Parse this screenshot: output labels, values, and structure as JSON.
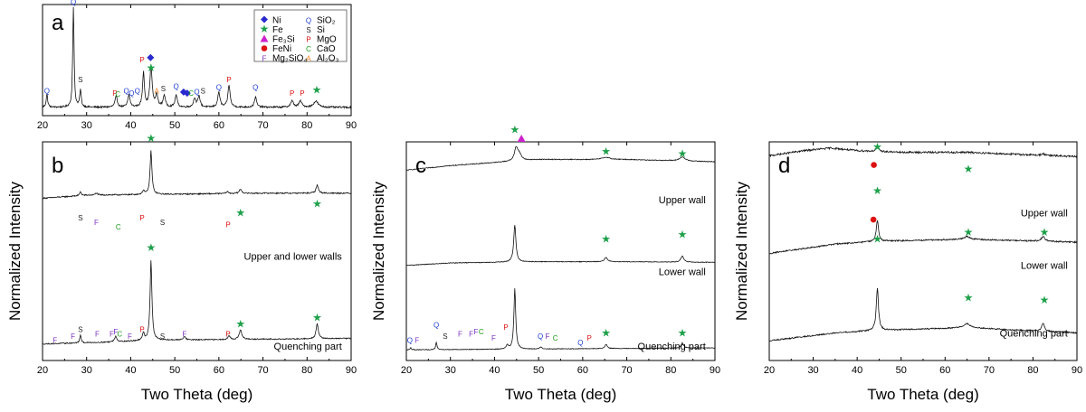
{
  "figure": {
    "x_axis_title": "Two Theta (deg)",
    "y_axis_title": "Normalized Intensity"
  },
  "colors": {
    "Q": "#1f3fcf",
    "S": "#222222",
    "P": "#dd1111",
    "C": "#1a9a1a",
    "F": "#7a2fbf",
    "A": "#ef7f1a",
    "Ni": "#2a2acf",
    "Fe": "#1fa04a",
    "Fe3Si": "#cc22cc",
    "FeNi": "#dd1111"
  },
  "legend": [
    {
      "symbol": "◆",
      "key": "Ni",
      "label": "Ni"
    },
    {
      "symbol": "★",
      "key": "Fe",
      "label": "Fe"
    },
    {
      "symbol": "▲",
      "key": "Fe3Si",
      "label": "Fe₃Si"
    },
    {
      "symbol": "●",
      "key": "FeNi",
      "label": "FeNi"
    },
    {
      "symbol": "F",
      "key": "F",
      "label": "Mg₂SiO₄"
    },
    {
      "symbol": "Q",
      "key": "Q",
      "label": "SiO₂"
    },
    {
      "symbol": "S",
      "key": "S",
      "label": "Si"
    },
    {
      "symbol": "P",
      "key": "P",
      "label": "MgO"
    },
    {
      "symbol": "C",
      "key": "C",
      "label": "CaO"
    },
    {
      "symbol": "A",
      "key": "A",
      "label": "Al₂O₃"
    }
  ],
  "chart_data": [
    {
      "panel": "a",
      "type": "line",
      "xlim": [
        20,
        90
      ],
      "xticks": [
        20,
        30,
        40,
        50,
        60,
        70,
        80,
        90
      ],
      "traces": [
        {
          "label": "",
          "background": [
            [
              20,
              0.05
            ],
            [
              90,
              0.05
            ]
          ],
          "peaks": [
            [
              21,
              0.13,
              0.2
            ],
            [
              27,
              1.0,
              0.18
            ],
            [
              28.6,
              0.17,
              0.2
            ],
            [
              36.7,
              0.11,
              0.3
            ],
            [
              39.6,
              0.12,
              0.3
            ],
            [
              42.9,
              0.35,
              0.25
            ],
            [
              44.6,
              0.41,
              0.3
            ],
            [
              45.9,
              0.12,
              0.3
            ],
            [
              47.6,
              0.12,
              0.3
            ],
            [
              50.3,
              0.12,
              0.3
            ],
            [
              54.5,
              0.09,
              0.3
            ],
            [
              55.5,
              0.11,
              0.3
            ],
            [
              60,
              0.15,
              0.3
            ],
            [
              62.3,
              0.22,
              0.3
            ],
            [
              68.3,
              0.1,
              0.3
            ],
            [
              76.6,
              0.06,
              0.4
            ],
            [
              78.5,
              0.06,
              0.4
            ],
            [
              82,
              0.06,
              0.6
            ]
          ],
          "noise": 0.008,
          "markers": [
            [
              "Q",
              21,
              0.2
            ],
            [
              "Q",
              27,
              1.0
            ],
            [
              "S",
              28.6,
              0.3
            ],
            [
              "P",
              36.4,
              0.18
            ],
            [
              "C",
              37.1,
              0.17
            ],
            [
              "Q",
              39,
              0.2
            ],
            [
              "Q",
              40.2,
              0.18
            ],
            [
              "Q",
              41.5,
              0.2
            ],
            [
              "P",
              42.6,
              0.48
            ],
            [
              "Ni",
              44.5,
              0.49
            ],
            [
              "Fe",
              44.6,
              0.4
            ],
            [
              "A",
              45.9,
              0.2
            ],
            [
              "S",
              47.4,
              0.22
            ],
            [
              "Q",
              50.3,
              0.24
            ],
            [
              "Ni",
              52,
              0.18
            ],
            [
              "Ni",
              52.8,
              0.17
            ],
            [
              "C",
              53.7,
              0.18
            ],
            [
              "Q",
              55,
              0.19
            ],
            [
              "S",
              56.4,
              0.2
            ],
            [
              "Q",
              60,
              0.23
            ],
            [
              "P",
              62.3,
              0.3
            ],
            [
              "Q",
              68.3,
              0.23
            ],
            [
              "P",
              76.6,
              0.18
            ],
            [
              "P",
              78.9,
              0.18
            ],
            [
              "Fe",
              82.2,
              0.2
            ]
          ]
        }
      ]
    },
    {
      "panel": "b",
      "type": "line",
      "xlim": [
        20,
        90
      ],
      "xticks": [
        20,
        30,
        40,
        50,
        60,
        70,
        80,
        90
      ],
      "traces": [
        {
          "label": "Upper and lower walls",
          "background": [
            [
              20,
              0.52
            ],
            [
              30,
              0.55
            ],
            [
              50,
              0.56
            ],
            [
              70,
              0.57
            ],
            [
              90,
              0.57
            ]
          ],
          "peaks": [
            [
              28.6,
              0.04,
              0.2
            ],
            [
              32.2,
              0.02,
              0.3
            ],
            [
              42.9,
              0.04,
              0.25
            ],
            [
              44.6,
              0.43,
              0.25
            ],
            [
              61.9,
              0.02,
              0.3
            ],
            [
              64.9,
              0.04,
              0.35
            ],
            [
              82.3,
              0.08,
              0.3
            ]
          ],
          "noise": 0.006,
          "markers": [
            [
              "S",
              28.6,
              0.64
            ],
            [
              "F",
              32.2,
              0.62
            ],
            [
              "C",
              37.2,
              0.6
            ],
            [
              "P",
              42.6,
              0.64
            ],
            [
              "Fe",
              44.6,
              1.0
            ],
            [
              "S",
              47.2,
              0.62
            ],
            [
              "P",
              62.1,
              0.61
            ],
            [
              "Fe",
              64.9,
              0.66
            ],
            [
              "Fe",
              82.3,
              0.7
            ]
          ]
        },
        {
          "label": "Quenching part",
          "background": [
            [
              20,
              0.03
            ],
            [
              35,
              0.04
            ],
            [
              45,
              0.05
            ],
            [
              90,
              0.06
            ]
          ],
          "peaks": [
            [
              28.6,
              0.04,
              0.2
            ],
            [
              36.6,
              0.03,
              0.3
            ],
            [
              42.9,
              0.04,
              0.25
            ],
            [
              44.6,
              0.43,
              0.25
            ],
            [
              52.2,
              0.02,
              0.3
            ],
            [
              62.3,
              0.02,
              0.3
            ],
            [
              64.9,
              0.05,
              0.35
            ],
            [
              82.3,
              0.08,
              0.3
            ]
          ],
          "noise": 0.006,
          "markers": [
            [
              "F",
              22.8,
              0.08
            ],
            [
              "F",
              26.9,
              0.1
            ],
            [
              "S",
              28.6,
              0.13
            ],
            [
              "F",
              32.4,
              0.11
            ],
            [
              "F",
              35.7,
              0.11
            ],
            [
              "F",
              36.6,
              0.12
            ],
            [
              "C",
              37.5,
              0.11
            ],
            [
              "F",
              39.8,
              0.1
            ],
            [
              "P",
              42.6,
              0.13
            ],
            [
              "Fe",
              44.6,
              0.5
            ],
            [
              "S",
              47.2,
              0.1
            ],
            [
              "F",
              52.2,
              0.11
            ],
            [
              "P",
              62.1,
              0.11
            ],
            [
              "Fe",
              64.9,
              0.15
            ],
            [
              "Fe",
              82.3,
              0.18
            ]
          ]
        }
      ]
    },
    {
      "panel": "c",
      "type": "line",
      "xlim": [
        20,
        90
      ],
      "xticks": [
        20,
        30,
        40,
        50,
        60,
        70,
        80,
        90
      ],
      "traces": [
        {
          "label": "Upper wall",
          "background": [
            [
              20,
              0.72
            ],
            [
              30,
              0.78
            ],
            [
              40,
              0.82
            ],
            [
              50,
              0.86
            ],
            [
              70,
              0.86
            ],
            [
              90,
              0.83
            ]
          ],
          "peaks": [
            [
              44.9,
              0.16,
              0.45
            ],
            [
              45.6,
              0.08,
              0.6
            ],
            [
              65.3,
              0.03,
              1.0
            ],
            [
              82.6,
              0.05,
              0.8
            ]
          ],
          "noise": 0.005,
          "markers": [
            [
              "Fe",
              44.6,
              1.04
            ],
            [
              "Fe3Si",
              46.1,
              1.0
            ],
            [
              "Fe",
              65.3,
              0.94
            ],
            [
              "Fe",
              82.6,
              0.93
            ]
          ]
        },
        {
          "label": "Lower wall",
          "background": [
            [
              20,
              0.37
            ],
            [
              30,
              0.41
            ],
            [
              50,
              0.43
            ],
            [
              70,
              0.43
            ],
            [
              90,
              0.42
            ]
          ],
          "peaks": [
            [
              44.6,
              0.6,
              0.3
            ],
            [
              65.3,
              0.07,
              0.4
            ],
            [
              82.6,
              0.1,
              0.4
            ]
          ],
          "noise": 0.005,
          "markers": [
            [
              "Fe",
              65.3,
              0.54
            ],
            [
              "Fe",
              82.6,
              0.56
            ]
          ]
        },
        {
          "label": "Quenching part",
          "background": [
            [
              20,
              0.04
            ],
            [
              90,
              0.06
            ]
          ],
          "peaks": [
            [
              21,
              0.02,
              0.2
            ],
            [
              26.8,
              0.07,
              0.2
            ],
            [
              42.9,
              0.04,
              0.25
            ],
            [
              44.6,
              0.6,
              0.25
            ],
            [
              50.5,
              0.02,
              0.3
            ],
            [
              65.3,
              0.04,
              0.35
            ],
            [
              82.6,
              0.05,
              0.35
            ]
          ],
          "noise": 0.005,
          "markers": [
            [
              "Q",
              20.8,
              0.08
            ],
            [
              "F",
              22.4,
              0.08
            ],
            [
              "Q",
              26.8,
              0.15
            ],
            [
              "S",
              28.8,
              0.1
            ],
            [
              "F",
              32.2,
              0.11
            ],
            [
              "F",
              34.7,
              0.11
            ],
            [
              "F",
              35.8,
              0.12
            ],
            [
              "C",
              37,
              0.12
            ],
            [
              "F",
              39.8,
              0.09
            ],
            [
              "P",
              42.6,
              0.14
            ],
            [
              "Q",
              50.4,
              0.1
            ],
            [
              "F",
              52,
              0.1
            ],
            [
              "C",
              53.8,
              0.09
            ],
            [
              "Q",
              59.5,
              0.07
            ],
            [
              "P",
              61.5,
              0.09
            ],
            [
              "Fe",
              65.3,
              0.11
            ],
            [
              "Fe",
              82.6,
              0.11
            ]
          ]
        }
      ]
    },
    {
      "panel": "d",
      "type": "line",
      "xlim": [
        20,
        90
      ],
      "xticks": [
        20,
        30,
        40,
        50,
        60,
        70,
        80,
        90
      ],
      "traces": [
        {
          "label": "Upper wall",
          "background": [
            [
              20,
              0.75
            ],
            [
              28,
              0.81
            ],
            [
              34,
              0.84
            ],
            [
              40,
              0.81
            ],
            [
              50,
              0.79
            ],
            [
              65,
              0.79
            ],
            [
              90,
              0.74
            ]
          ],
          "peaks": [
            [
              44.6,
              0.06,
              0.35
            ],
            [
              82.3,
              0.02,
              0.4
            ]
          ],
          "noise": 0.012,
          "markers": [
            [
              "FeNi",
              43.8,
              0.88
            ],
            [
              "Fe",
              44.6,
              0.96
            ],
            [
              "Fe",
              65.3,
              0.86
            ]
          ]
        },
        {
          "label": "Lower wall",
          "background": [
            [
              20,
              0.37
            ],
            [
              35,
              0.47
            ],
            [
              45,
              0.5
            ],
            [
              65,
              0.52
            ],
            [
              90,
              0.49
            ]
          ],
          "peaks": [
            [
              44.6,
              0.22,
              0.3
            ],
            [
              65,
              0.03,
              0.8
            ],
            [
              82.3,
              0.05,
              0.5
            ]
          ],
          "noise": 0.01,
          "markers": [
            [
              "FeNi",
              43.7,
              0.63
            ],
            [
              "Fe",
              44.6,
              0.76
            ],
            [
              "Fe",
              65.3,
              0.57
            ],
            [
              "Fe",
              82.6,
              0.57
            ]
          ]
        },
        {
          "label": "Quenching part",
          "background": [
            [
              20,
              0.1
            ],
            [
              35,
              0.16
            ],
            [
              45,
              0.18
            ],
            [
              65,
              0.2
            ],
            [
              90,
              0.16
            ]
          ],
          "peaks": [
            [
              44.6,
              0.32,
              0.3
            ],
            [
              65,
              0.03,
              0.9
            ],
            [
              82.3,
              0.06,
              0.4
            ]
          ],
          "noise": 0.01,
          "markers": [
            [
              "Fe",
              44.6,
              0.54
            ],
            [
              "Fe",
              65.3,
              0.27
            ],
            [
              "Fe",
              82.6,
              0.26
            ]
          ]
        }
      ]
    }
  ]
}
